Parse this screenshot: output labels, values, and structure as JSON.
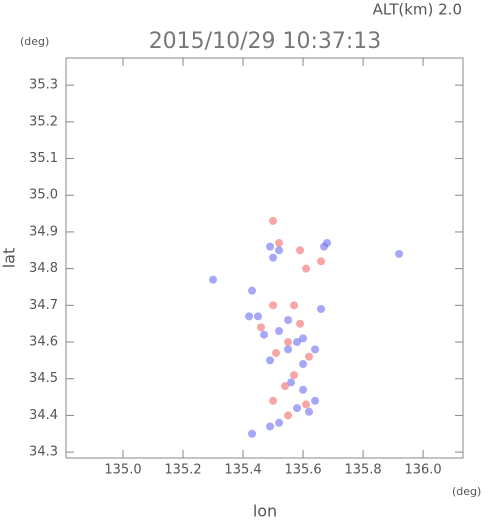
{
  "chart_data": {
    "type": "scatter",
    "title": "2015/10/29 10:37:13",
    "subtitle": "ALT(km) 2.0",
    "y_unit": "(deg)",
    "x_unit": "(deg)",
    "x_label": "lon",
    "y_label": "lat",
    "xlim": [
      134.81,
      136.133
    ],
    "ylim": [
      34.284,
      35.374
    ],
    "xticks": [
      {
        "value": 135.0,
        "label": "135.0"
      },
      135.2,
      135.4,
      135.6,
      135.8,
      {
        "value": 136.0,
        "label": "136.0"
      }
    ],
    "yticks": [
      34.3,
      34.4,
      34.5,
      34.6,
      34.7,
      34.8,
      34.9,
      {
        "value": 35.0,
        "label": "35.0"
      },
      35.1,
      35.2,
      35.3
    ],
    "series": [
      {
        "color": "#6a6cf0",
        "x": [
          135.49,
          135.52,
          135.5,
          135.67,
          135.68,
          135.92,
          135.3,
          135.43,
          135.42,
          135.45,
          135.55,
          135.52,
          135.6,
          135.58,
          135.64,
          135.55,
          135.49,
          135.6,
          135.56,
          135.6,
          135.64,
          135.58,
          135.52,
          135.49,
          135.43,
          135.62,
          135.47,
          135.66
        ],
        "values": [
          34.86,
          34.85,
          34.83,
          34.86,
          34.87,
          34.84,
          34.77,
          34.74,
          34.67,
          34.67,
          34.66,
          34.63,
          34.61,
          34.6,
          34.58,
          34.58,
          34.55,
          34.54,
          34.49,
          34.47,
          34.44,
          34.42,
          34.38,
          34.37,
          34.35,
          34.41,
          34.62,
          34.69
        ]
      },
      {
        "color": "#f06a6a",
        "x": [
          135.5,
          135.52,
          135.59,
          135.61,
          135.66,
          135.5,
          135.57,
          135.55,
          135.51,
          135.62,
          135.57,
          135.54,
          135.61,
          135.55,
          135.5,
          135.59,
          135.46
        ],
        "values": [
          34.93,
          34.87,
          34.85,
          34.8,
          34.82,
          34.7,
          34.7,
          34.6,
          34.57,
          34.56,
          34.51,
          34.48,
          34.43,
          34.4,
          34.44,
          34.65,
          34.64
        ]
      }
    ]
  }
}
